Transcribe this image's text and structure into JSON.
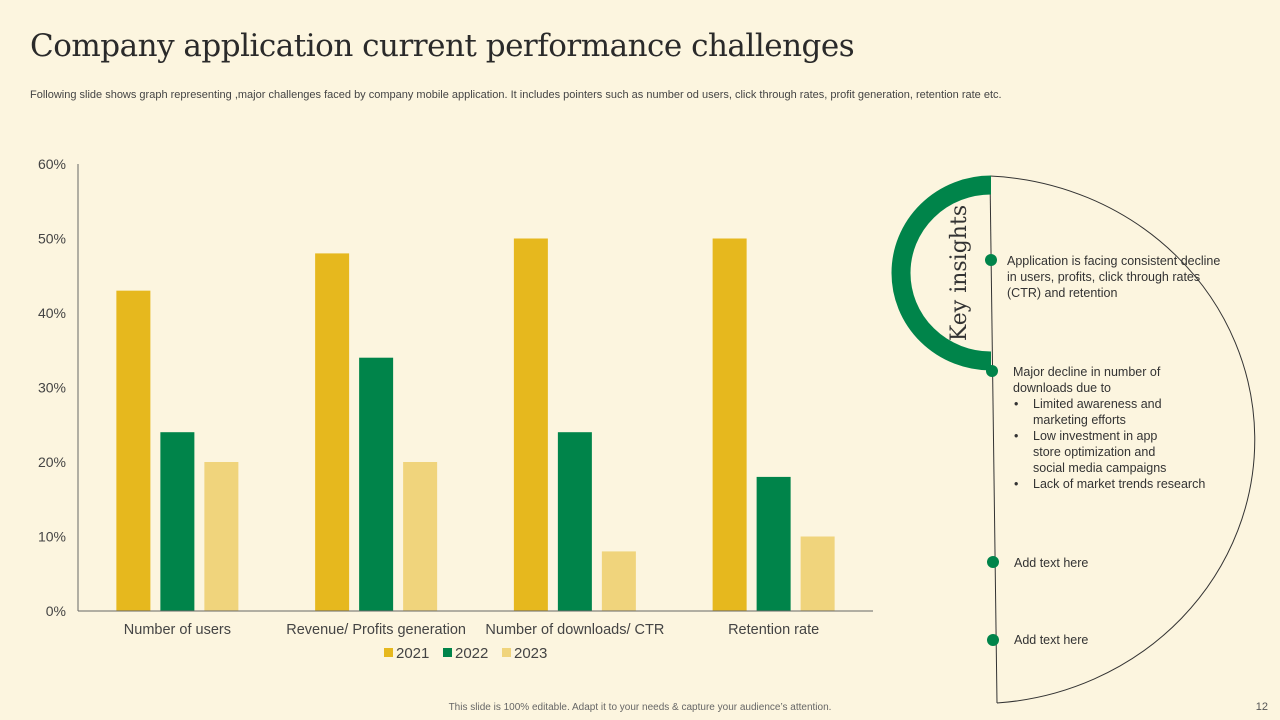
{
  "slide": {
    "title": "Company application current performance challenges",
    "subtitle": "Following slide shows graph representing ,major challenges faced by company mobile application. It includes pointers such as number od users, click through rates, profit generation, retention rate etc.",
    "footer": "This slide is 100% editable.  Adapt it to your needs & capture your audience’s attention.",
    "page_number": "12"
  },
  "chart_data": {
    "type": "bar",
    "categories": [
      "Number of users",
      "Revenue/ Profits generation",
      "Number of downloads/ CTR",
      "Retention rate"
    ],
    "series": [
      {
        "name": "2021",
        "values": [
          43,
          48,
          50,
          50
        ],
        "color": "#e6b81e"
      },
      {
        "name": "2022",
        "values": [
          24,
          34,
          24,
          18
        ],
        "color": "#00844a"
      },
      {
        "name": "2023",
        "values": [
          20,
          20,
          8,
          10
        ],
        "color": "#f0d47c"
      }
    ],
    "yticks": [
      "0%",
      "10%",
      "20%",
      "30%",
      "40%",
      "50%",
      "60%"
    ],
    "ylim": [
      0,
      60
    ],
    "legend_position": "bottom"
  },
  "insights": {
    "heading": "Key insights",
    "accent_color": "#00844a",
    "item1": "Application is facing consistent decline in users, profits, click through rates (CTR)  and retention",
    "item2_intro": "Major decline in number of downloads due to",
    "item2_bullets": [
      "Limited awareness and marketing efforts",
      "Low investment in app store optimization and social media campaigns",
      "Lack of market trends research"
    ],
    "item3": "Add text here",
    "item4": "Add text here"
  }
}
